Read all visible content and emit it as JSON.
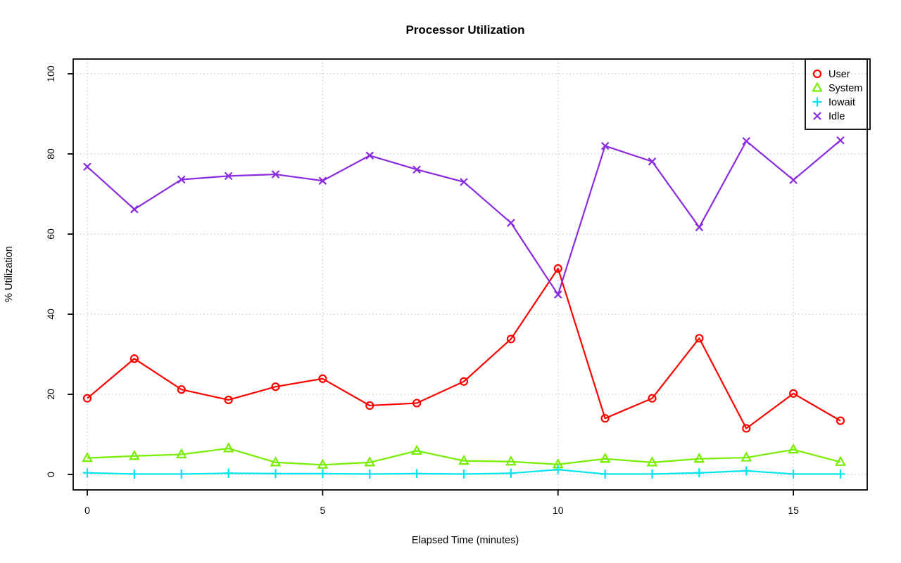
{
  "chart_data": {
    "type": "line",
    "title": "Processor Utilization",
    "xlabel": "Elapsed Time (minutes)",
    "ylabel": "% Utilization",
    "x": [
      0,
      1,
      2,
      3,
      4,
      5,
      6,
      7,
      8,
      9,
      10,
      11,
      12,
      13,
      14,
      15,
      16
    ],
    "x_ticks": [
      0,
      5,
      10,
      15
    ],
    "y_ticks": [
      0,
      20,
      40,
      60,
      80,
      100
    ],
    "xlim": [
      0,
      16
    ],
    "ylim": [
      0,
      100
    ],
    "grid": "dotted",
    "grid_color": "#c9c9c9",
    "axis_color": "#000000",
    "background_color": "#ffffff",
    "legend_position": "top-right",
    "series": [
      {
        "name": "User",
        "marker": "circle",
        "color": "#ff0000",
        "values": [
          19,
          28.9,
          21.2,
          18.6,
          21.9,
          23.9,
          17.2,
          17.8,
          23.2,
          33.8,
          51.4,
          14,
          19,
          34,
          11.5,
          20.2,
          13.4
        ]
      },
      {
        "name": "System",
        "marker": "triangle",
        "color": "#76ee00",
        "values": [
          4.1,
          4.6,
          5,
          6.5,
          3,
          2.4,
          3,
          5.9,
          3.4,
          3.2,
          2.5,
          3.9,
          3,
          3.9,
          4.2,
          6.2,
          3.1
        ]
      },
      {
        "name": "Iowait",
        "marker": "plus",
        "color": "#00e5ee",
        "values": [
          0.4,
          0.1,
          0.1,
          0.3,
          0.2,
          0.2,
          0.1,
          0.2,
          0.1,
          0.3,
          1.2,
          0.1,
          0.1,
          0.4,
          0.9,
          0.1,
          0.1
        ]
      },
      {
        "name": "Idle",
        "marker": "x",
        "color": "#8a2be2",
        "values": [
          76.8,
          66.2,
          73.6,
          74.5,
          74.9,
          73.3,
          79.6,
          76.1,
          73,
          62.8,
          44.9,
          82,
          78.1,
          61.7,
          83.2,
          73.5,
          83.4
        ]
      }
    ]
  }
}
